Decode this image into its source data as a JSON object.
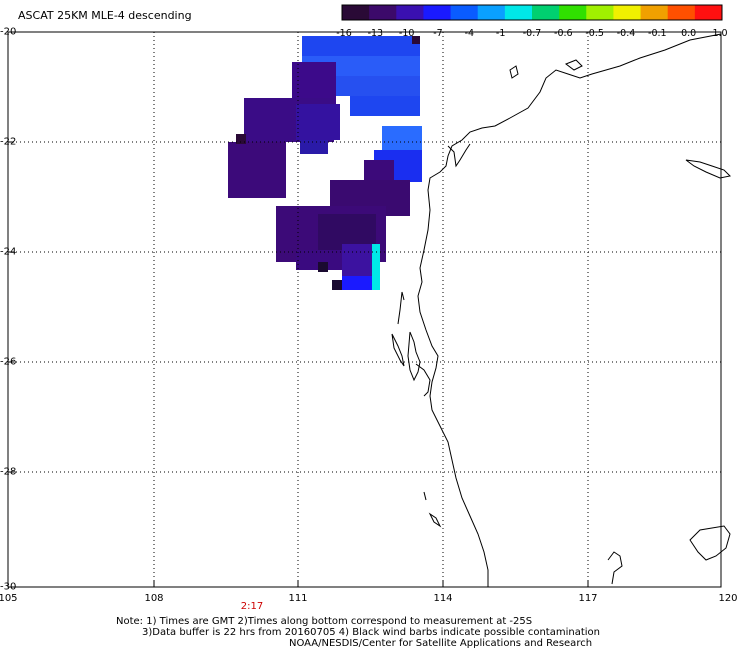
{
  "title": "ASCAT 25KM MLE-4 descending",
  "colorbar": {
    "labels": [
      "-16",
      "-13",
      "-10",
      "-7",
      "-4",
      "-1",
      "-0.7",
      "-0.6",
      "-0.5",
      "-0.4",
      "-0.1",
      "0.0",
      "1.0"
    ],
    "colors": [
      "#2a0a36",
      "#3c0a6a",
      "#3a10b0",
      "#1a1aff",
      "#0a5cff",
      "#0aa0ff",
      "#00e8e8",
      "#00d070",
      "#30e000",
      "#a0f000",
      "#f0f000",
      "#f0a000",
      "#ff5000",
      "#ff1010"
    ]
  },
  "axes": {
    "x_ticks": [
      "105",
      "108",
      "111",
      "114",
      "117",
      "120"
    ],
    "y_ticks": [
      "-20",
      "-22",
      "-24",
      "-26",
      "-28",
      "-30"
    ],
    "x_range": [
      105,
      120
    ],
    "y_range": [
      -30,
      -20
    ],
    "grid": true
  },
  "time_label": "2:17",
  "notes": {
    "line1": "Note: 1) Times are GMT 2)Times along bottom correspond to measurement at -25S",
    "line2": "3)Data buffer is 22 hrs from 20160705 4) Black wind barbs indicate possible contamination",
    "line3": "NOAA/NESDIS/Center for Satellite Applications and Research"
  },
  "colors": {
    "dark_purple": "#3a0a78",
    "indigo": "#3c14a8",
    "blue": "#1e46f0",
    "bright_blue": "#2a6cff",
    "cyan": "#00e8e8",
    "coastline": "#000000",
    "grid": "#000000"
  }
}
